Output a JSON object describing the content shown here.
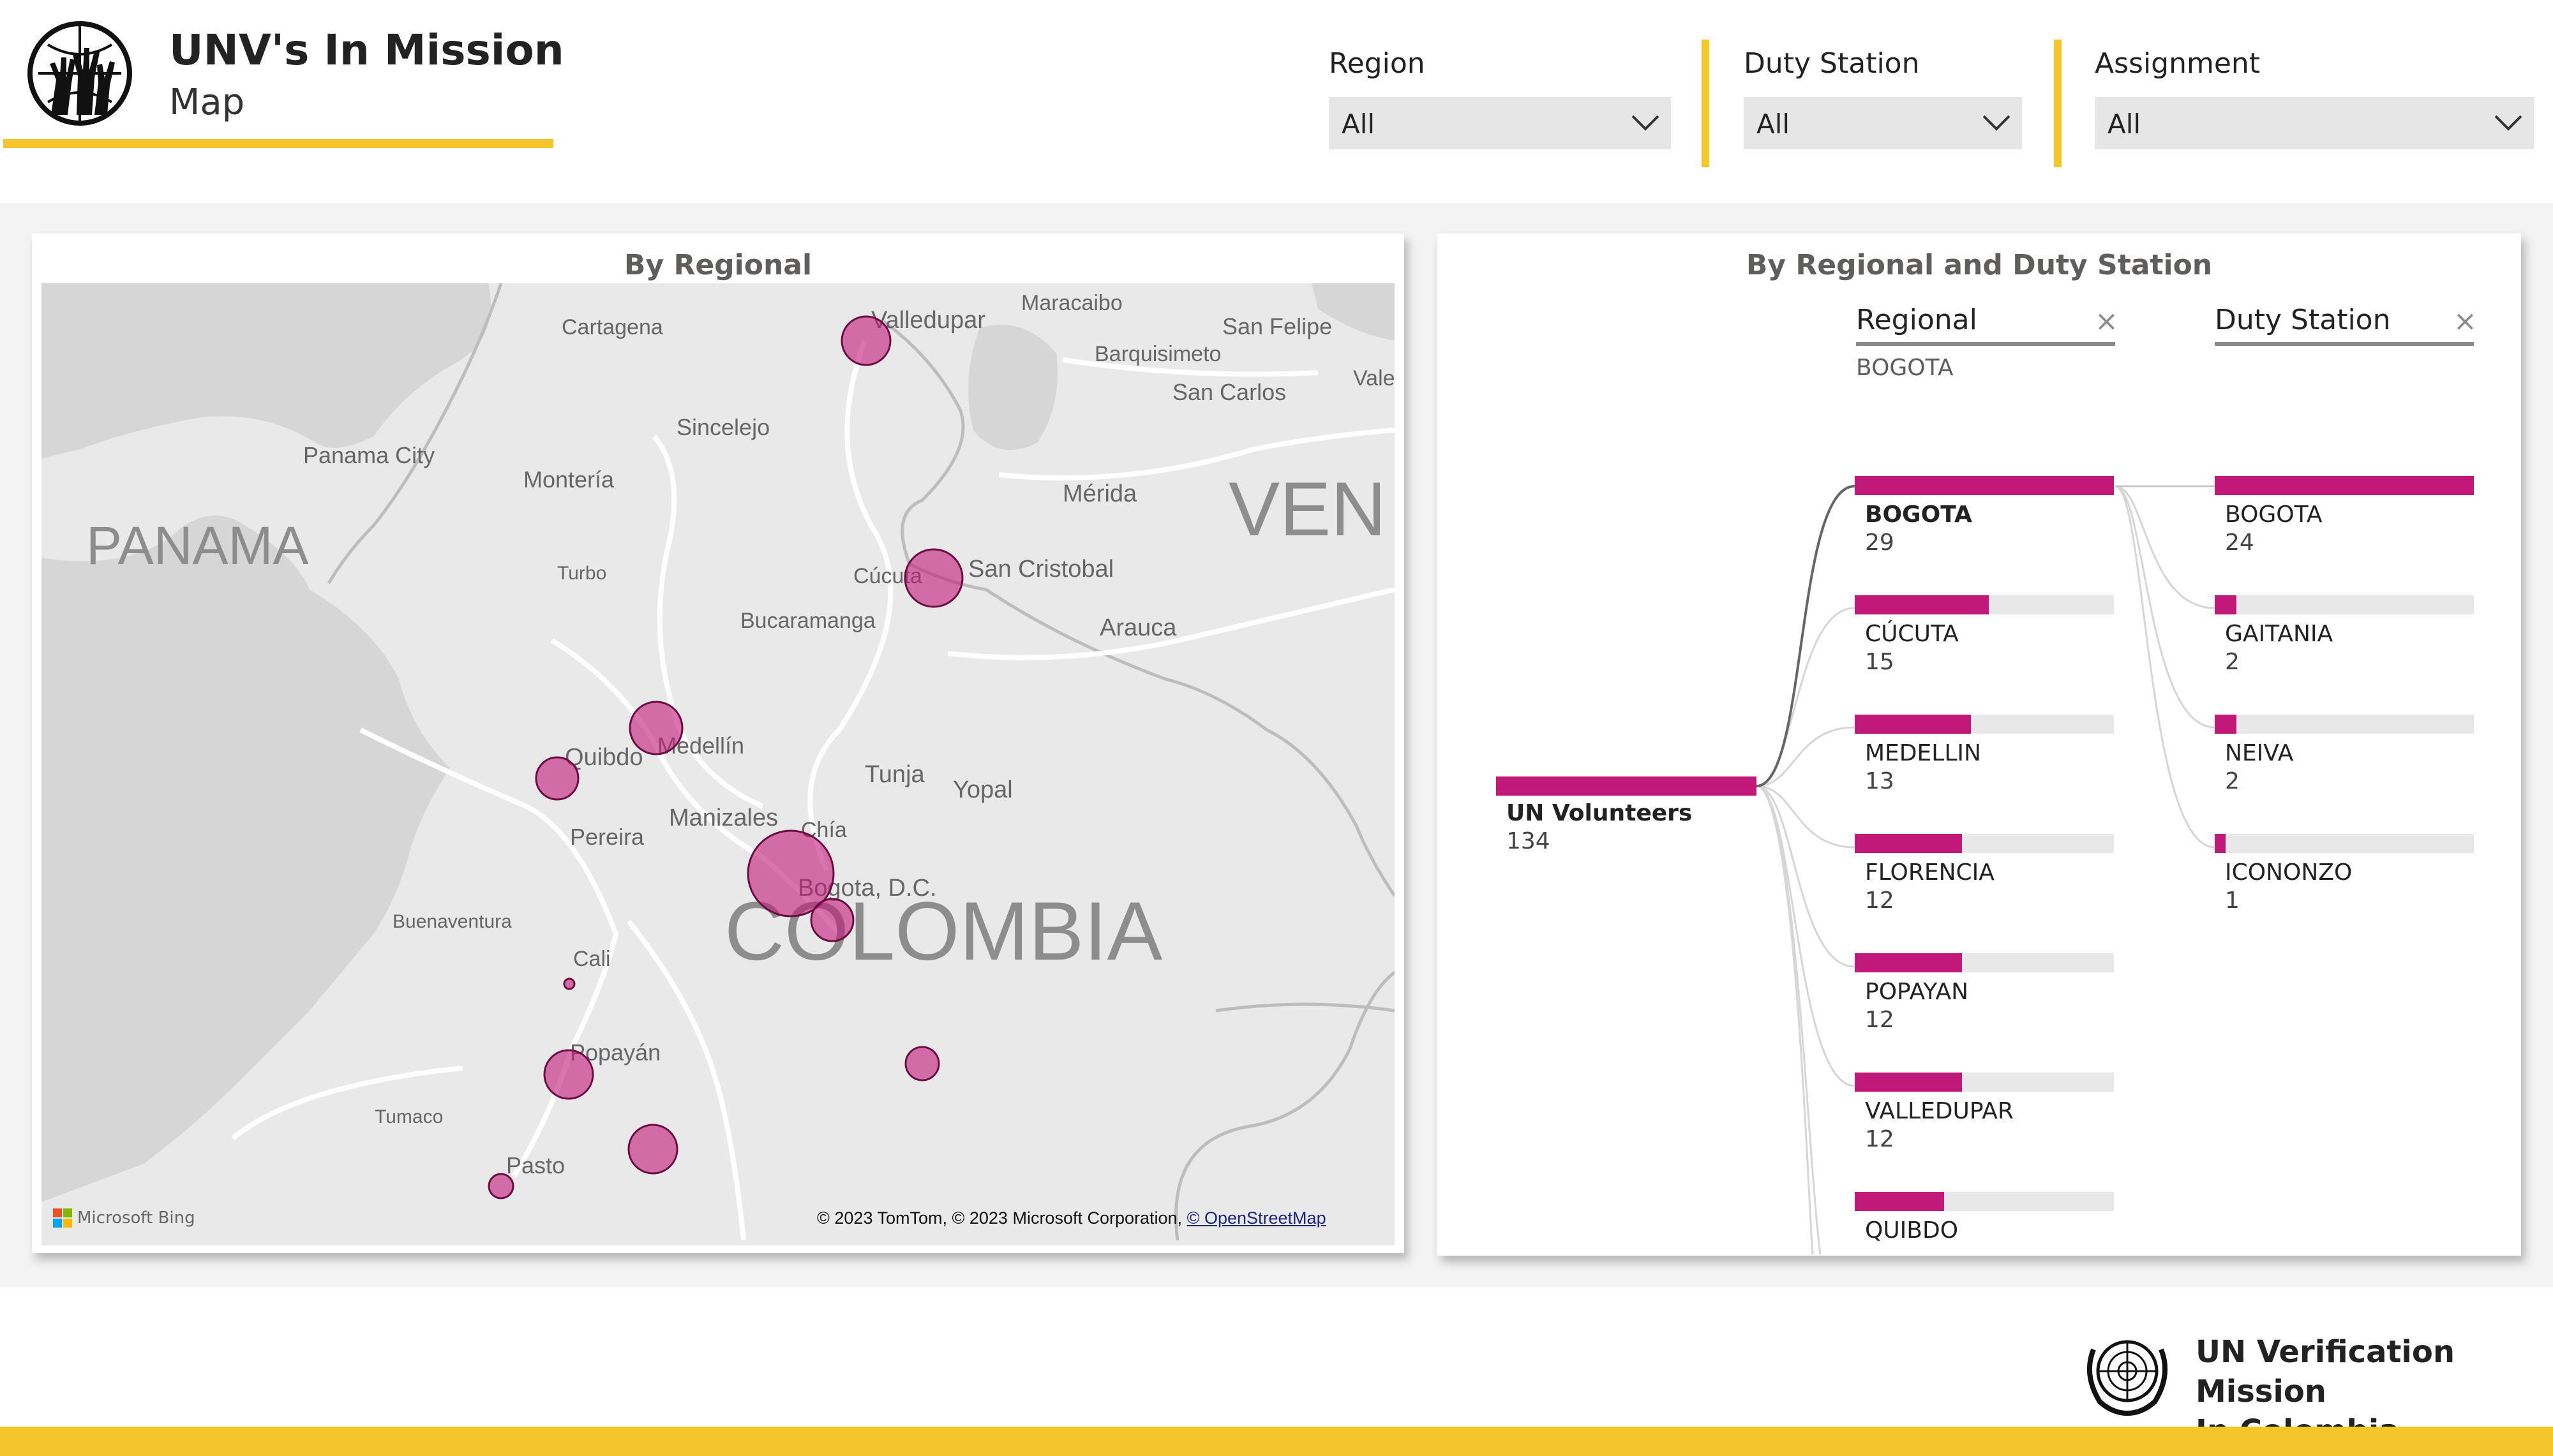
{
  "header": {
    "title": "UNV's In Mission",
    "subtitle": "Map",
    "logo_icon": "hands-globe-icon",
    "accent_color": "#f5c62a"
  },
  "filters": [
    {
      "label": "Region",
      "value": "All"
    },
    {
      "label": "Duty Station",
      "value": "All"
    },
    {
      "label": "Assignment",
      "value": "All"
    }
  ],
  "map_panel": {
    "title": "By Regional",
    "bubble_color": "#c1197a",
    "country_labels": [
      "PANAMA",
      "VEN",
      "COLOMBIA"
    ],
    "city_labels": [
      "Cartagena",
      "Valledupar",
      "Maracaibo",
      "San Felipe",
      "Barquisimeto",
      "Vale",
      "San Carlos",
      "Panama City",
      "Sincelejo",
      "Montería",
      "Mérida",
      "Turbo",
      "Cúcuta",
      "San Cristobal",
      "Bucaramanga",
      "Arauca",
      "Medellín",
      "Quibdo",
      "Tunja",
      "Yopal",
      "Manizales",
      "Chía",
      "Pereira",
      "Bogota, D.C.",
      "Buenaventura",
      "Cali",
      "Popayán",
      "Tumaco",
      "Pasto"
    ],
    "attribution_brand": "Microsoft Bing",
    "attribution_text": "© 2023 TomTom, © 2023 Microsoft Corporation,",
    "attribution_link": "© OpenStreetMap"
  },
  "tree_panel": {
    "title": "By Regional and Duty Station",
    "root": {
      "label": "UN Volunteers",
      "value": "134"
    },
    "level1": {
      "header": "Regional",
      "selection": "BOGOTA",
      "nodes": [
        {
          "label": "BOGOTA",
          "value": "29",
          "fraction": 1.0
        },
        {
          "label": "CÚCUTA",
          "value": "15",
          "fraction": 0.517
        },
        {
          "label": "MEDELLIN",
          "value": "13",
          "fraction": 0.448
        },
        {
          "label": "FLORENCIA",
          "value": "12",
          "fraction": 0.414
        },
        {
          "label": "POPAYAN",
          "value": "12",
          "fraction": 0.414
        },
        {
          "label": "VALLEDUPAR",
          "value": "12",
          "fraction": 0.414
        },
        {
          "label": "QUIBDO",
          "value": "",
          "fraction": 0.345
        }
      ]
    },
    "level2": {
      "header": "Duty Station",
      "nodes": [
        {
          "label": "BOGOTA",
          "value": "24",
          "fraction": 1.0
        },
        {
          "label": "GAITANIA",
          "value": "2",
          "fraction": 0.083
        },
        {
          "label": "NEIVA",
          "value": "2",
          "fraction": 0.083
        },
        {
          "label": "ICONONZO",
          "value": "1",
          "fraction": 0.042
        }
      ]
    }
  },
  "footer": {
    "org_line1": "UN Verification Mission",
    "org_line2": "In Colombia",
    "logo_icon": "un-emblem-icon"
  }
}
